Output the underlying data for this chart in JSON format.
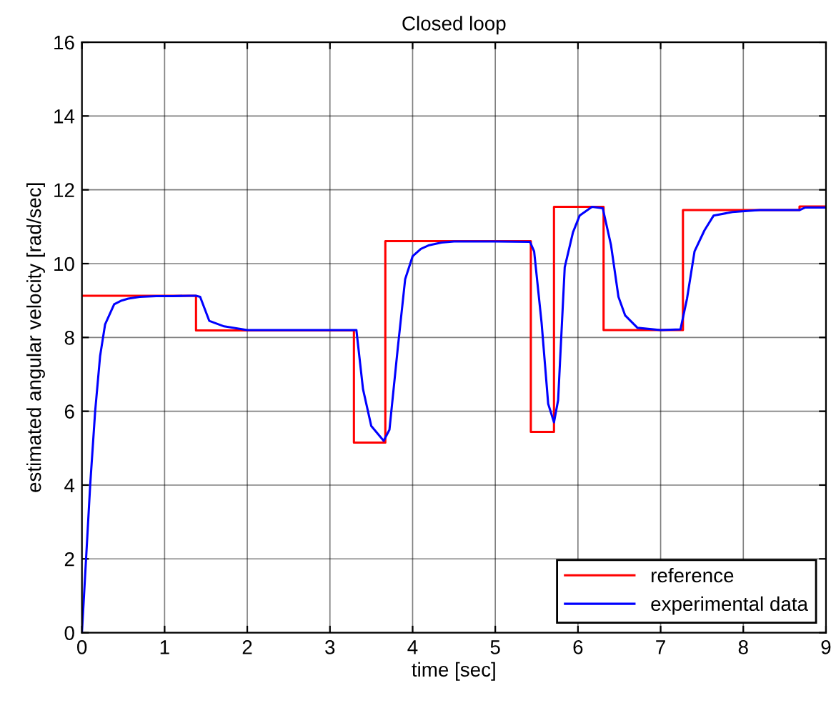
{
  "chart_data": {
    "type": "line",
    "title": "Closed loop",
    "xlabel": "time [sec]",
    "ylabel": "estimated angular velocity [rad/sec]",
    "xlim": [
      0,
      9
    ],
    "ylim": [
      0,
      16
    ],
    "xticks": [
      0,
      1,
      2,
      3,
      4,
      5,
      6,
      7,
      8,
      9
    ],
    "yticks": [
      0,
      2,
      4,
      6,
      8,
      10,
      12,
      14,
      16
    ],
    "grid": true,
    "legend": "bottom right",
    "line_style": "solid",
    "marker": "none",
    "series": [
      {
        "name": "reference",
        "color": "#ff0000",
        "type": "step",
        "x": [
          0,
          1.38,
          3.29,
          3.67,
          5.43,
          5.71,
          6.31,
          7.27,
          8.68,
          9
        ],
        "values": [
          9.13,
          8.19,
          5.15,
          10.61,
          5.44,
          11.54,
          8.2,
          11.45,
          11.55,
          11.55
        ]
      },
      {
        "name": "experimental data",
        "color": "#0000ff",
        "x": [
          0,
          0.05,
          0.1,
          0.16,
          0.22,
          0.28,
          0.39,
          0.48,
          0.56,
          0.7,
          0.9,
          1.1,
          1.3,
          1.38,
          1.43,
          1.54,
          1.72,
          2.0,
          2.5,
          3.0,
          3.32,
          3.4,
          3.5,
          3.65,
          3.72,
          3.82,
          3.91,
          4.0,
          4.1,
          4.2,
          4.35,
          4.5,
          5.0,
          5.42,
          5.47,
          5.56,
          5.64,
          5.71,
          5.76,
          5.84,
          5.94,
          6.02,
          6.17,
          6.3,
          6.4,
          6.49,
          6.57,
          6.72,
          7.0,
          7.24,
          7.32,
          7.41,
          7.53,
          7.64,
          7.87,
          8.2,
          8.68,
          8.75,
          9
        ],
        "values": [
          0,
          2,
          4,
          6,
          7.5,
          8.35,
          8.9,
          9.0,
          9.05,
          9.1,
          9.12,
          9.12,
          9.13,
          9.13,
          9.1,
          8.45,
          8.3,
          8.2,
          8.2,
          8.2,
          8.2,
          6.6,
          5.6,
          5.2,
          5.5,
          7.7,
          9.58,
          10.2,
          10.4,
          10.5,
          10.57,
          10.6,
          10.6,
          10.59,
          10.33,
          8.4,
          6.2,
          5.7,
          6.3,
          9.9,
          10.85,
          11.3,
          11.54,
          11.5,
          10.5,
          9.1,
          8.6,
          8.26,
          8.2,
          8.22,
          9.06,
          10.33,
          10.9,
          11.3,
          11.4,
          11.45,
          11.45,
          11.52,
          11.52
        ]
      }
    ]
  }
}
